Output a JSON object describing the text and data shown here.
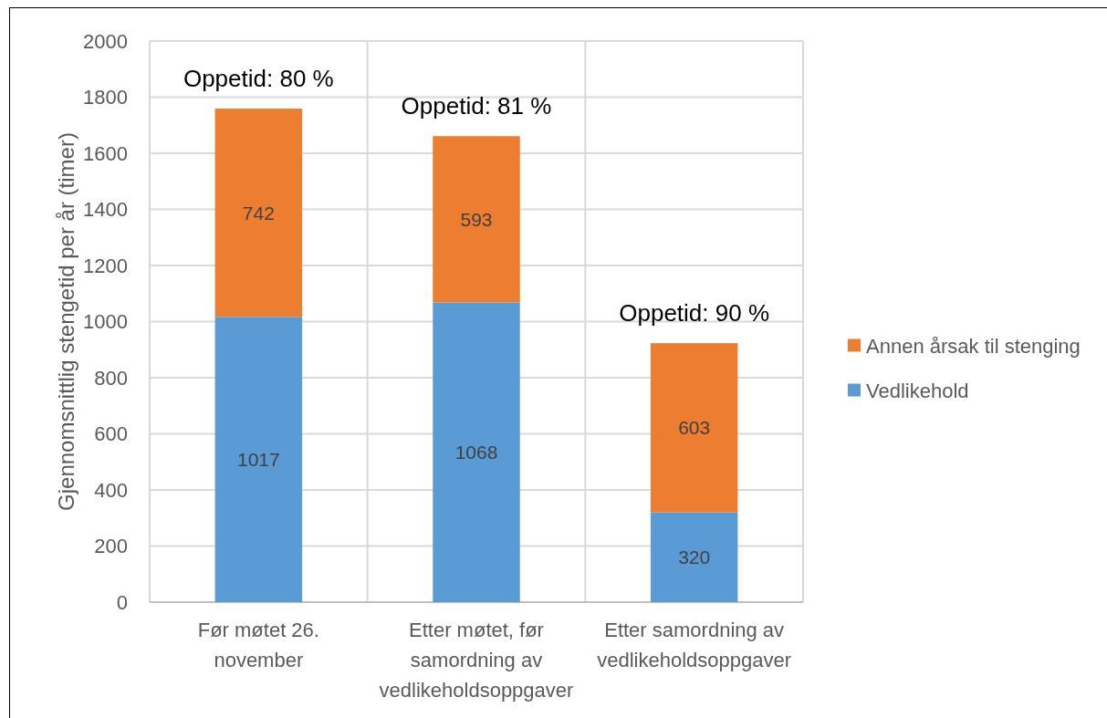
{
  "chart_data": {
    "type": "bar",
    "stacked": true,
    "categories": [
      "Før møtet 26. november",
      "Etter møtet, før samordning av vedlikeholdsoppgaver",
      "Etter samordning av vedlikeholdsoppgaver"
    ],
    "series": [
      {
        "name": "Vedlikehold",
        "color": "#5b9bd5",
        "values": [
          1017,
          1068,
          320
        ]
      },
      {
        "name": "Annen årsak til stenging",
        "color": "#ed7d31",
        "values": [
          742,
          593,
          603
        ]
      }
    ],
    "ylabel": "Gjennomsnittlig stengetid per år (timer)",
    "ylim": [
      0,
      2000
    ],
    "yticks": [
      0,
      200,
      400,
      600,
      800,
      1000,
      1200,
      1400,
      1600,
      1800,
      2000
    ],
    "grid": true,
    "legend": "right",
    "data_labels": true,
    "annotations": [
      {
        "text": "Oppetid: 80 %",
        "x": "Før møtet 26. november",
        "y": 1759
      },
      {
        "text": "Oppetid: 81 %",
        "x": "Etter møtet, før samordning av vedlikeholdsoppgaver",
        "y": 1661
      },
      {
        "text": "Oppetid: 90 %",
        "x": "Etter samordning av vedlikeholdsoppgaver",
        "y": 923
      }
    ]
  }
}
